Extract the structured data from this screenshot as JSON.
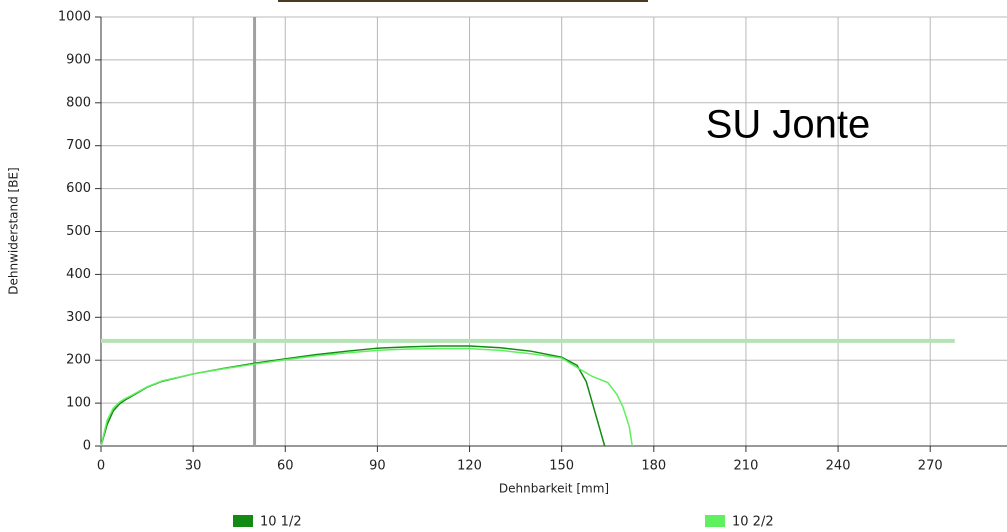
{
  "chart_data": {
    "type": "line",
    "annotation": "SU Jonte",
    "x_label": "Dehnbarkeit [mm]",
    "y_label": "Dehnwiderstand [BE]",
    "xlim": [
      0,
      295
    ],
    "xticks": [
      0,
      30,
      60,
      90,
      120,
      150,
      180,
      210,
      240,
      270
    ],
    "ylim": [
      0,
      1000
    ],
    "yticks": [
      0,
      100,
      200,
      300,
      400,
      500,
      600,
      700,
      800,
      900,
      1000
    ],
    "grid": true,
    "legend": "bottom",
    "vertical_line": {
      "x": 50,
      "color": "#a0a0a0"
    },
    "horizontal_line": {
      "y": 245,
      "x_end": 278,
      "color": "#b5e3b5"
    },
    "series": [
      {
        "name": "10 1/2",
        "color": "#138a13",
        "x": [
          0,
          2,
          4,
          6,
          8,
          10,
          15,
          20,
          30,
          40,
          50,
          60,
          70,
          80,
          90,
          100,
          110,
          120,
          130,
          140,
          150,
          155,
          158,
          160,
          162,
          164
        ],
        "values": [
          0,
          50,
          82,
          98,
          108,
          116,
          137,
          151,
          168,
          181,
          193,
          203,
          213,
          221,
          228,
          231,
          233,
          233,
          229,
          221,
          207,
          188,
          150,
          100,
          50,
          0
        ]
      },
      {
        "name": "10 2/2",
        "color": "#5ef05e",
        "x": [
          0,
          2,
          4,
          6,
          8,
          10,
          15,
          20,
          30,
          40,
          50,
          60,
          70,
          80,
          90,
          100,
          110,
          120,
          130,
          140,
          150,
          155,
          160,
          165,
          168,
          170,
          172,
          173
        ],
        "values": [
          0,
          60,
          88,
          102,
          111,
          118,
          138,
          152,
          168,
          180,
          191,
          201,
          210,
          217,
          223,
          226,
          227,
          227,
          223,
          215,
          205,
          183,
          162,
          148,
          120,
          90,
          45,
          0
        ]
      }
    ]
  }
}
